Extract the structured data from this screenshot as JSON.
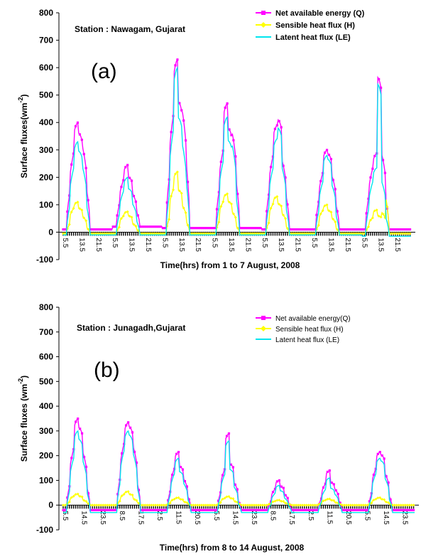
{
  "chart_data": [
    {
      "type": "line",
      "panel_label": "(a)",
      "station": "Station : Nawagam, Gujarat",
      "xlabel": "Time(hrs) from 1 to 7 August, 2008",
      "ylabel": "Surface fluxes(wm",
      "ylabel_sup": "-2",
      "ylabel_close": ")",
      "ylim": [
        -100,
        800
      ],
      "yticks": [
        -100,
        0,
        100,
        200,
        300,
        400,
        500,
        600,
        700,
        800
      ],
      "x_hours_start": 5.5,
      "x_hours_step": 0.5,
      "x_tick_labels": [
        "5.5",
        "13.5",
        "21.5",
        "5.5",
        "13.5",
        "21.5",
        "5.5",
        "13.5",
        "21.5",
        "5.5",
        "13.5",
        "21.5",
        "5.5",
        "13.5",
        "21.5",
        "5.5",
        "13.5",
        "21.5",
        "5.5",
        "13.5",
        "21.5"
      ],
      "x_tick_step_hours": 8,
      "legend_position": "top-right",
      "colors": {
        "Q": "#ff00ff",
        "H": "#ffff00",
        "LE": "#00e5ee"
      },
      "series": [
        {
          "key": "Q",
          "name": "Net available energy (Q)",
          "color": "#ff00ff",
          "days": [
            {
              "night": 10,
              "peak": 400,
              "shape": [
                0.55,
                0.8,
                1.0,
                0.9,
                0.85,
                0.6
              ]
            },
            {
              "night": 20,
              "peak": 245,
              "shape": [
                0.6,
                0.85,
                1.0,
                0.8,
                0.6,
                0.4
              ]
            },
            {
              "night": 15,
              "peak": 630,
              "shape": [
                0.5,
                0.75,
                1.0,
                0.75,
                0.77,
                0.6
              ]
            },
            {
              "night": 15,
              "peak": 470,
              "shape": [
                0.5,
                0.7,
                1.0,
                0.8,
                0.85,
                0.6
              ]
            },
            {
              "night": 10,
              "peak": 410,
              "shape": [
                0.55,
                0.75,
                0.95,
                1.0,
                0.7,
                0.5
              ]
            },
            {
              "night": 10,
              "peak": 300,
              "shape": [
                0.6,
                0.8,
                1.0,
                0.95,
                0.75,
                0.5
              ]
            },
            {
              "night": 10,
              "peak": 565,
              "shape": [
                0.35,
                0.45,
                0.5,
                1.0,
                0.55,
                0.3
              ]
            }
          ]
        },
        {
          "key": "H",
          "name": "Sensible heat flux (H)",
          "color": "#ffff00",
          "days": [
            {
              "night": -5,
              "peak": 110,
              "shape": [
                0.5,
                0.9,
                1.0,
                0.8,
                0.6,
                0.3
              ]
            },
            {
              "night": -5,
              "peak": 75,
              "shape": [
                0.5,
                0.9,
                1.0,
                0.8,
                0.5,
                0.3
              ]
            },
            {
              "night": -5,
              "peak": 220,
              "shape": [
                0.4,
                0.8,
                1.0,
                0.7,
                0.5,
                0.3
              ]
            },
            {
              "night": -5,
              "peak": 140,
              "shape": [
                0.5,
                0.9,
                1.0,
                0.8,
                0.6,
                0.3
              ]
            },
            {
              "night": -5,
              "peak": 130,
              "shape": [
                0.5,
                0.9,
                1.0,
                0.8,
                0.6,
                0.3
              ]
            },
            {
              "night": -5,
              "peak": 100,
              "shape": [
                0.5,
                0.9,
                1.0,
                0.8,
                0.6,
                0.3
              ]
            },
            {
              "night": -5,
              "peak": 210,
              "shape": [
                0.2,
                0.3,
                0.4,
                0.3,
                0.4,
                1.0
              ]
            }
          ]
        },
        {
          "key": "LE",
          "name": "Latent heat flux (LE)",
          "color": "#00e5ee",
          "days": [
            {
              "night": -10,
              "peak": 330,
              "shape": [
                0.5,
                0.8,
                1.0,
                0.9,
                0.8,
                0.5
              ]
            },
            {
              "night": -10,
              "peak": 200,
              "shape": [
                0.6,
                0.85,
                1.0,
                0.8,
                0.6,
                0.4
              ]
            },
            {
              "night": -10,
              "peak": 600,
              "shape": [
                0.4,
                0.7,
                1.0,
                0.7,
                0.6,
                0.5
              ]
            },
            {
              "night": -10,
              "peak": 420,
              "shape": [
                0.4,
                0.7,
                1.0,
                0.8,
                0.85,
                0.5
              ]
            },
            {
              "night": -10,
              "peak": 380,
              "shape": [
                0.45,
                0.7,
                0.9,
                1.0,
                0.7,
                0.4
              ]
            },
            {
              "night": -10,
              "peak": 280,
              "shape": [
                0.5,
                0.75,
                1.0,
                0.95,
                0.7,
                0.4
              ]
            },
            {
              "night": -15,
              "peak": 540,
              "shape": [
                0.3,
                0.4,
                0.45,
                1.0,
                0.4,
                0.2
              ]
            }
          ]
        }
      ]
    },
    {
      "type": "line",
      "panel_label": "(b)",
      "station": "Station : Junagadh,Gujarat",
      "xlabel": "Time(hrs) from 8 to 14 August, 2008",
      "ylabel": "Surface fluxes (wm",
      "ylabel_sup": "-2",
      "ylabel_close": ")",
      "ylim": [
        -100,
        800
      ],
      "yticks": [
        -100,
        0,
        100,
        200,
        300,
        400,
        500,
        600,
        700,
        800
      ],
      "x_tick_labels": [
        "5.5",
        "14.5",
        "23.5",
        "8.5",
        "17.5",
        "2.5",
        "11.5",
        "20.5",
        "5.5",
        "14.5",
        "23.5",
        "8.5",
        "17.5",
        "2.5",
        "11.5",
        "20.5",
        "5.5",
        "14.5",
        "23.5"
      ],
      "x_tick_step_hours": 9,
      "legend_position": "top-right",
      "colors": {
        "Q": "#ff00ff",
        "H": "#ffff00",
        "LE": "#00e5ee"
      },
      "series": [
        {
          "key": "Q",
          "name": "Net available energy(Q)",
          "color": "#ff00ff",
          "days": [
            {
              "night": -20,
              "peak": 350,
              "shape": [
                0.45,
                0.75,
                1.0,
                0.9,
                0.7,
                0.4
              ]
            },
            {
              "night": -20,
              "peak": 335,
              "shape": [
                0.6,
                0.85,
                1.0,
                0.95,
                0.8,
                0.5
              ]
            },
            {
              "night": -20,
              "peak": 215,
              "shape": [
                0.55,
                0.8,
                1.0,
                0.75,
                0.6,
                0.4
              ]
            },
            {
              "night": -20,
              "peak": 290,
              "shape": [
                0.4,
                0.6,
                1.0,
                0.6,
                0.4,
                0.2
              ]
            },
            {
              "night": -20,
              "peak": 100,
              "shape": [
                0.5,
                0.8,
                1.0,
                0.8,
                0.6,
                0.4
              ]
            },
            {
              "night": -20,
              "peak": 140,
              "shape": [
                0.5,
                0.75,
                1.0,
                0.7,
                0.6,
                0.4
              ]
            },
            {
              "night": -20,
              "peak": 215,
              "shape": [
                0.5,
                0.8,
                1.0,
                0.95,
                0.7,
                0.4
              ]
            }
          ]
        },
        {
          "key": "H",
          "name": "Sensible heat flux (H)",
          "color": "#ffff00",
          "days": [
            {
              "night": 0,
              "peak": 45,
              "shape": [
                0.5,
                0.9,
                1.0,
                0.8,
                0.5,
                0.3
              ]
            },
            {
              "night": 0,
              "peak": 55,
              "shape": [
                0.5,
                0.9,
                1.0,
                0.8,
                0.5,
                0.3
              ]
            },
            {
              "night": 0,
              "peak": 30,
              "shape": [
                0.5,
                0.9,
                1.0,
                0.8,
                0.5,
                0.3
              ]
            },
            {
              "night": 0,
              "peak": 35,
              "shape": [
                0.5,
                0.9,
                1.0,
                0.8,
                0.5,
                0.3
              ]
            },
            {
              "night": 0,
              "peak": 20,
              "shape": [
                0.5,
                0.9,
                1.0,
                0.8,
                0.5,
                0.3
              ]
            },
            {
              "night": 0,
              "peak": 25,
              "shape": [
                0.5,
                0.9,
                1.0,
                0.8,
                0.5,
                0.3
              ]
            },
            {
              "night": 0,
              "peak": 30,
              "shape": [
                0.5,
                0.9,
                1.0,
                0.8,
                0.5,
                0.3
              ]
            }
          ]
        },
        {
          "key": "LE",
          "name": "Latent heat flux (LE)",
          "color": "#00e5ee",
          "days": [
            {
              "night": -30,
              "peak": 300,
              "shape": [
                0.45,
                0.75,
                1.0,
                0.9,
                0.7,
                0.4
              ]
            },
            {
              "night": -30,
              "peak": 300,
              "shape": [
                0.6,
                0.85,
                1.0,
                0.95,
                0.8,
                0.5
              ]
            },
            {
              "night": -30,
              "peak": 190,
              "shape": [
                0.55,
                0.8,
                1.0,
                0.75,
                0.6,
                0.4
              ]
            },
            {
              "night": -30,
              "peak": 260,
              "shape": [
                0.4,
                0.6,
                1.0,
                0.6,
                0.4,
                0.2
              ]
            },
            {
              "night": -30,
              "peak": 80,
              "shape": [
                0.5,
                0.8,
                1.0,
                0.8,
                0.6,
                0.4
              ]
            },
            {
              "night": -30,
              "peak": 110,
              "shape": [
                0.5,
                0.75,
                1.0,
                0.7,
                0.6,
                0.4
              ]
            },
            {
              "night": -30,
              "peak": 190,
              "shape": [
                0.5,
                0.8,
                1.0,
                0.95,
                0.7,
                0.4
              ]
            }
          ]
        }
      ]
    }
  ]
}
